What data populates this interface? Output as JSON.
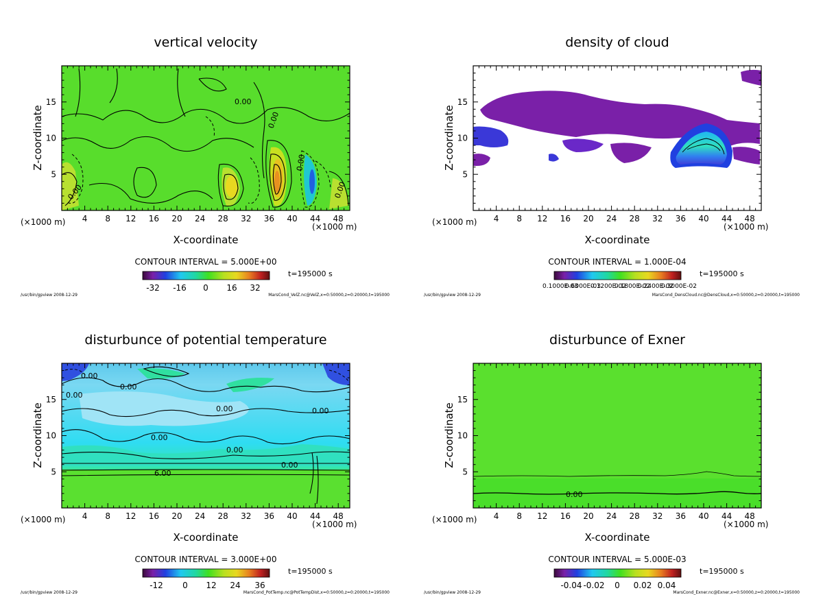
{
  "x_unit": "(×1000 m)",
  "x_label": "X-coordinate",
  "y_label": "Z-coordinate",
  "time": "t=195000 s",
  "footer_left": "/usr/bin/gpview  2008-12-29",
  "chart_data": [
    {
      "type": "heatmap",
      "title": "vertical velocity",
      "xlabel": "X-coordinate",
      "ylabel": "Z-coordinate",
      "xlim": [
        0,
        50
      ],
      "ylim": [
        0,
        20
      ],
      "xticks": [
        4,
        8,
        12,
        16,
        20,
        24,
        28,
        32,
        36,
        40,
        44,
        48
      ],
      "yticks": [
        5,
        10,
        15
      ],
      "contour_interval": "CONTOUR INTERVAL = 5.000E+00",
      "colorbar_ticks": [
        "-32",
        "-16",
        "0",
        "16",
        "32"
      ],
      "contour_labels": [
        "0.00",
        "0.00",
        "0.00",
        "0.00",
        "0.00"
      ],
      "file": "MarsCond_VelZ.nc@VelZ,x=0:50000,z=0:20000,t=195000"
    },
    {
      "type": "heatmap",
      "title": "density of cloud",
      "xlabel": "X-coordinate",
      "ylabel": "Z-coordinate",
      "xlim": [
        0,
        50
      ],
      "ylim": [
        0,
        20
      ],
      "xticks": [
        4,
        8,
        12,
        16,
        20,
        24,
        28,
        32,
        36,
        40,
        44,
        48
      ],
      "yticks": [
        5,
        10,
        15
      ],
      "contour_interval": "CONTOUR INTERVAL = 1.000E-04",
      "colorbar_ticks": [
        "0.1000E-03",
        "0.6000E-03",
        "0.1200E-02",
        "0.1800E-02",
        "0.2400E-02",
        "0.3000E-02"
      ],
      "contour_labels": [],
      "file": "MarsCond_DensCloud.nc@DensCloud,x=0:50000,z=0:20000,t=195000"
    },
    {
      "type": "heatmap",
      "title": "disturbunce of potential temperature",
      "xlabel": "X-coordinate",
      "ylabel": "Z-coordinate",
      "xlim": [
        0,
        50
      ],
      "ylim": [
        0,
        20
      ],
      "xticks": [
        4,
        8,
        12,
        16,
        20,
        24,
        28,
        32,
        36,
        40,
        44,
        48
      ],
      "yticks": [
        5,
        10,
        15
      ],
      "contour_interval": "CONTOUR INTERVAL = 3.000E+00",
      "colorbar_ticks": [
        "-12",
        "0",
        "12",
        "24",
        "36"
      ],
      "contour_labels": [
        "0.00",
        "0.00",
        "0.00",
        "0.00",
        "0.00",
        "0.00",
        "6.00",
        "0.00",
        "0.00"
      ],
      "file": "MarsCond_PotTemp.nc@PotTempDist,x=0:50000,z=0:20000,t=195000"
    },
    {
      "type": "heatmap",
      "title": "disturbunce of Exner",
      "xlabel": "X-coordinate",
      "ylabel": "Z-coordinate",
      "xlim": [
        0,
        50
      ],
      "ylim": [
        0,
        20
      ],
      "xticks": [
        4,
        8,
        12,
        16,
        20,
        24,
        28,
        32,
        36,
        40,
        44,
        48
      ],
      "yticks": [
        5,
        10,
        15
      ],
      "contour_interval": "CONTOUR INTERVAL = 5.000E-03",
      "colorbar_ticks": [
        "-0.04",
        "-0.02",
        "0",
        "0.02",
        "0.04"
      ],
      "contour_labels": [
        "0.00"
      ],
      "file": "MarsCond_Exner.nc@Exner,x=0:50000,z=0:20000,t=195000"
    }
  ]
}
